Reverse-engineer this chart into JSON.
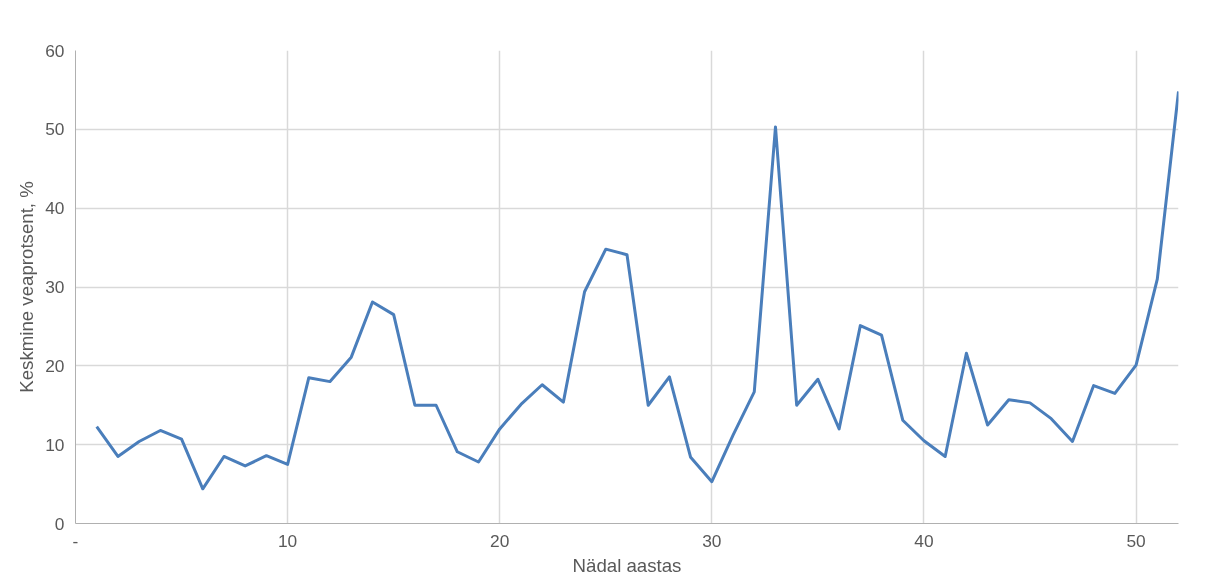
{
  "chart_data": {
    "type": "line",
    "xlabel": "Nädal aastas",
    "ylabel": "Keskmine veaprotsent, %",
    "x": [
      1,
      2,
      3,
      4,
      5,
      6,
      7,
      8,
      9,
      10,
      11,
      12,
      13,
      14,
      15,
      16,
      17,
      18,
      19,
      20,
      21,
      22,
      23,
      24,
      25,
      26,
      27,
      28,
      29,
      30,
      31,
      32,
      33,
      34,
      35,
      36,
      37,
      38,
      39,
      40,
      41,
      42,
      43,
      44,
      45,
      46,
      47,
      48,
      49,
      50,
      51,
      52
    ],
    "series": [
      {
        "color": "#4a7ebb",
        "values": [
          12.3,
          8.5,
          10.4,
          11.8,
          10.7,
          4.4,
          8.5,
          7.3,
          8.6,
          7.5,
          18.5,
          18.0,
          21.1,
          28.1,
          26.5,
          15.0,
          15.0,
          9.1,
          7.8,
          12.0,
          15.1,
          17.6,
          15.4,
          29.4,
          34.8,
          34.1,
          15.0,
          18.6,
          8.4,
          5.3,
          11.2,
          16.7,
          50.3,
          15.0,
          18.3,
          12.0,
          25.1,
          23.9,
          13.1,
          10.5,
          8.5,
          21.6,
          12.5,
          15.7,
          15.3,
          13.3,
          10.4,
          17.5,
          16.5,
          20.1,
          31.0,
          54.8
        ]
      }
    ],
    "xlim": [
      0,
      52
    ],
    "xticks": [
      {
        "value": 0,
        "label": "-"
      },
      10,
      20,
      30,
      40,
      50
    ],
    "ylim": [
      0,
      60
    ],
    "yticks": [
      0,
      10,
      20,
      30,
      40,
      50,
      60
    ],
    "grid": true,
    "marker": "none",
    "line_style": "solid"
  }
}
